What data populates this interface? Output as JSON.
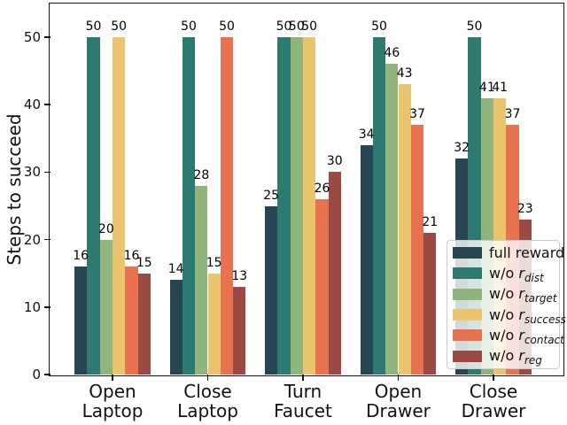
{
  "figure": {
    "background": "#ffffff",
    "text_color": "#111111",
    "spine_color": "#121212"
  },
  "chart_data": {
    "type": "bar",
    "title": "",
    "xlabel": "",
    "ylabel": "Steps to succeed",
    "ylim": [
      0,
      55
    ],
    "yticks": [
      0,
      10,
      20,
      30,
      40,
      50
    ],
    "grid": false,
    "legend_position": "inside lower-right",
    "bar_value_labels": true,
    "categories": [
      "Open Laptop",
      "Close Laptop",
      "Turn Faucet",
      "Open Drawer",
      "Close Drawer"
    ],
    "category_label_lines": [
      [
        "Open",
        "Laptop"
      ],
      [
        "Close",
        "Laptop"
      ],
      [
        "Turn",
        "Faucet"
      ],
      [
        "Open",
        "Drawer"
      ],
      [
        "Close",
        "Drawer"
      ]
    ],
    "series": [
      {
        "legend_prefix": "full reward",
        "legend_var": "",
        "legend_sub": "",
        "color": "#264653",
        "values": [
          16,
          14,
          25,
          34,
          32
        ]
      },
      {
        "legend_prefix": "w/o ",
        "legend_var": "r",
        "legend_sub": "dist",
        "color": "#2d7a70",
        "values": [
          50,
          50,
          50,
          50,
          50
        ]
      },
      {
        "legend_prefix": "w/o ",
        "legend_var": "r",
        "legend_sub": "target",
        "color": "#8fb47c",
        "values": [
          20,
          28,
          50,
          46,
          41
        ]
      },
      {
        "legend_prefix": "w/o ",
        "legend_var": "r",
        "legend_sub": "success",
        "color": "#eac56d",
        "values": [
          50,
          15,
          50,
          43,
          41
        ]
      },
      {
        "legend_prefix": "w/o ",
        "legend_var": "r",
        "legend_sub": "contact",
        "color": "#e8714f",
        "values": [
          16,
          50,
          26,
          37,
          37
        ]
      },
      {
        "legend_prefix": "w/o ",
        "legend_var": "r",
        "legend_sub": "reg",
        "color": "#9a4a42",
        "values": [
          15,
          13,
          30,
          21,
          23
        ]
      }
    ]
  }
}
